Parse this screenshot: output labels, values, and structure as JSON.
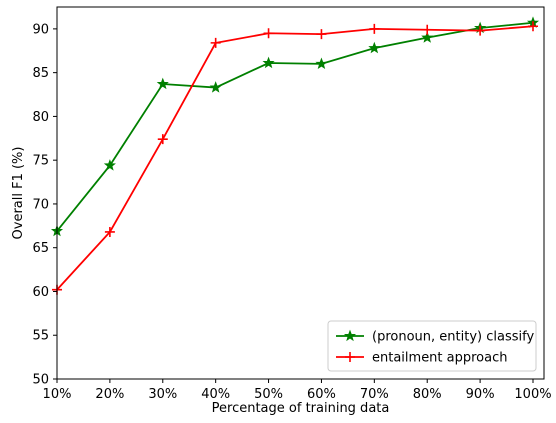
{
  "chart_data": {
    "type": "line",
    "xlabel": "Percentage of training data",
    "ylabel": "Overall F1 (%)",
    "categories": [
      "10%",
      "20%",
      "30%",
      "40%",
      "50%",
      "60%",
      "70%",
      "80%",
      "90%",
      "100%"
    ],
    "ylim": [
      50,
      92.5
    ],
    "yticks": [
      50,
      55,
      60,
      65,
      70,
      75,
      80,
      85,
      90
    ],
    "grid": false,
    "legend_position": "lower-right",
    "series": [
      {
        "name": "(pronoun, entity) classify",
        "color": "#008000",
        "marker": "star",
        "values": [
          66.9,
          74.4,
          83.7,
          83.3,
          86.1,
          86.0,
          87.8,
          89.0,
          90.1,
          90.7
        ]
      },
      {
        "name": "entailment approach",
        "color": "#ff0000",
        "marker": "plus",
        "values": [
          60.2,
          66.8,
          77.4,
          88.4,
          89.5,
          89.4,
          90.0,
          89.9,
          89.8,
          90.3
        ]
      }
    ]
  }
}
